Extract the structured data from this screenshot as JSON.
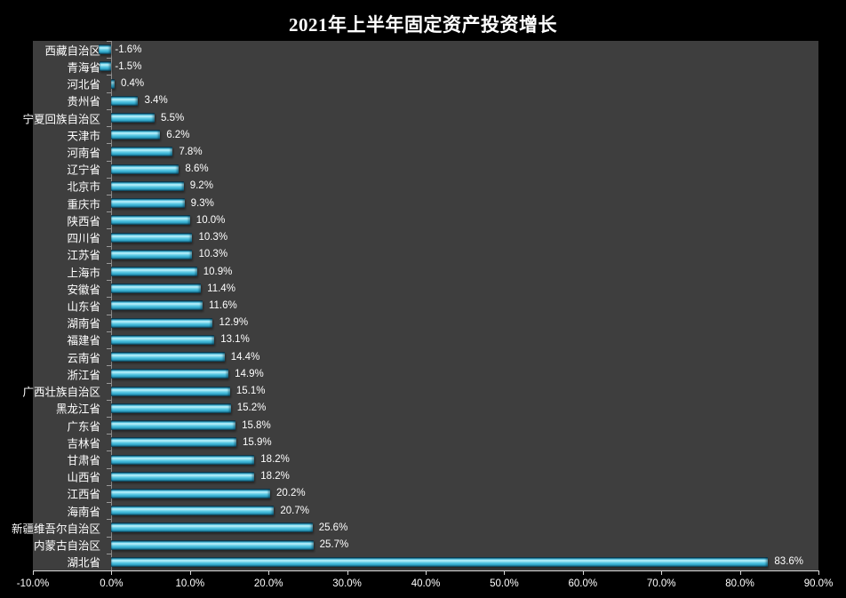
{
  "title": "2021年上半年固定资产投资增长",
  "chart_data": {
    "type": "bar",
    "orientation": "horizontal",
    "title": "2021年上半年固定资产投资增长",
    "categories": [
      "西藏自治区",
      "青海省",
      "河北省",
      "贵州省",
      "宁夏回族自治区",
      "天津市",
      "河南省",
      "辽宁省",
      "北京市",
      "重庆市",
      "陕西省",
      "四川省",
      "江苏省",
      "上海市",
      "安徽省",
      "山东省",
      "湖南省",
      "福建省",
      "云南省",
      "浙江省",
      "广西壮族自治区",
      "黑龙江省",
      "广东省",
      "吉林省",
      "甘肃省",
      "山西省",
      "江西省",
      "海南省",
      "新疆维吾尔自治区",
      "内蒙古自治区",
      "湖北省"
    ],
    "values": [
      -1.6,
      -1.5,
      0.4,
      3.4,
      5.5,
      6.2,
      7.8,
      8.6,
      9.2,
      9.3,
      10.0,
      10.3,
      10.3,
      10.9,
      11.4,
      11.6,
      12.9,
      13.1,
      14.4,
      14.9,
      15.1,
      15.2,
      15.8,
      15.9,
      18.2,
      18.2,
      20.2,
      20.7,
      25.6,
      25.7,
      83.6
    ],
    "value_labels": [
      "-1.6%",
      "-1.5%",
      "0.4%",
      "3.4%",
      "5.5%",
      "6.2%",
      "7.8%",
      "8.6%",
      "9.2%",
      "9.3%",
      "10.0%",
      "10.3%",
      "10.3%",
      "10.9%",
      "11.4%",
      "11.6%",
      "12.9%",
      "13.1%",
      "14.4%",
      "14.9%",
      "15.1%",
      "15.2%",
      "15.8%",
      "15.9%",
      "18.2%",
      "18.2%",
      "20.2%",
      "20.7%",
      "25.6%",
      "25.7%",
      "83.6%"
    ],
    "x_tick_labels": [
      "-10.0%",
      "0.0%",
      "10.0%",
      "20.0%",
      "30.0%",
      "40.0%",
      "50.0%",
      "60.0%",
      "70.0%",
      "80.0%",
      "90.0%"
    ],
    "xlim": [
      -10,
      90
    ],
    "x_tick_step": 10,
    "grid": false,
    "legend": false,
    "colors": {
      "background": "#000000",
      "plot_background": "#3e3e3e",
      "bar": "#4cc0de",
      "bar_highlight": "#c4f2fb",
      "bar_dark": "#113c4c",
      "axis_line": "#d9d9d9",
      "zero_line": "#8c8c8c",
      "text": "#ffffff"
    }
  }
}
